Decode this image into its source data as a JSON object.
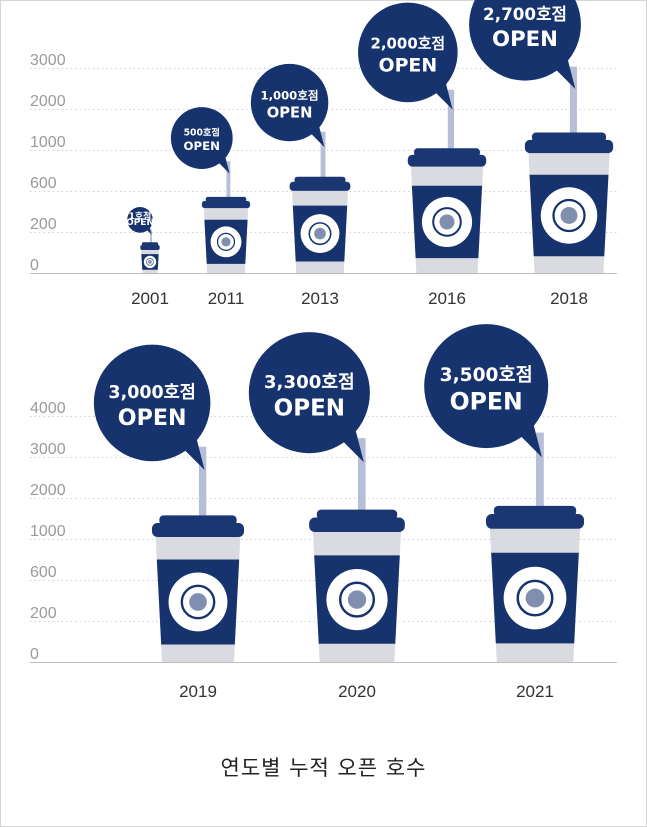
{
  "caption": "연도별 누적 오픈 호수",
  "colors": {
    "navy": "#17336e",
    "lid": "#1a3673",
    "cup": "#d9dbe0",
    "straw": "#b7bfd6",
    "grid": "#cfcfcf",
    "axis": "#9a9a9a"
  },
  "cup_logo_text": "EDIYA ESPRESSO COFFEE",
  "chart_data": [
    {
      "type": "bar",
      "title": "",
      "xlabel": "",
      "ylabel": "",
      "y_ticks": [
        "3000",
        "2000",
        "1000",
        "600",
        "200",
        "0"
      ],
      "categories": [
        "2001",
        "2011",
        "2013",
        "2016",
        "2018"
      ],
      "values": [
        1,
        500,
        1000,
        2000,
        2700
      ],
      "labels": [
        {
          "count": "1호점",
          "open": "OPEN"
        },
        {
          "count": "500호점",
          "open": "OPEN"
        },
        {
          "count": "1,000호점",
          "open": "OPEN"
        },
        {
          "count": "2,000호점",
          "open": "OPEN"
        },
        {
          "count": "2,700호점",
          "open": "OPEN"
        }
      ],
      "grid": true
    },
    {
      "type": "bar",
      "title": "",
      "xlabel": "",
      "ylabel": "",
      "y_ticks": [
        "4000",
        "3000",
        "2000",
        "1000",
        "600",
        "200",
        "0"
      ],
      "categories": [
        "2019",
        "2020",
        "2021"
      ],
      "values": [
        3000,
        3300,
        3500
      ],
      "labels": [
        {
          "count": "3,000호점",
          "open": "OPEN"
        },
        {
          "count": "3,300호점",
          "open": "OPEN"
        },
        {
          "count": "3,500호점",
          "open": "OPEN"
        }
      ],
      "grid": true
    }
  ]
}
